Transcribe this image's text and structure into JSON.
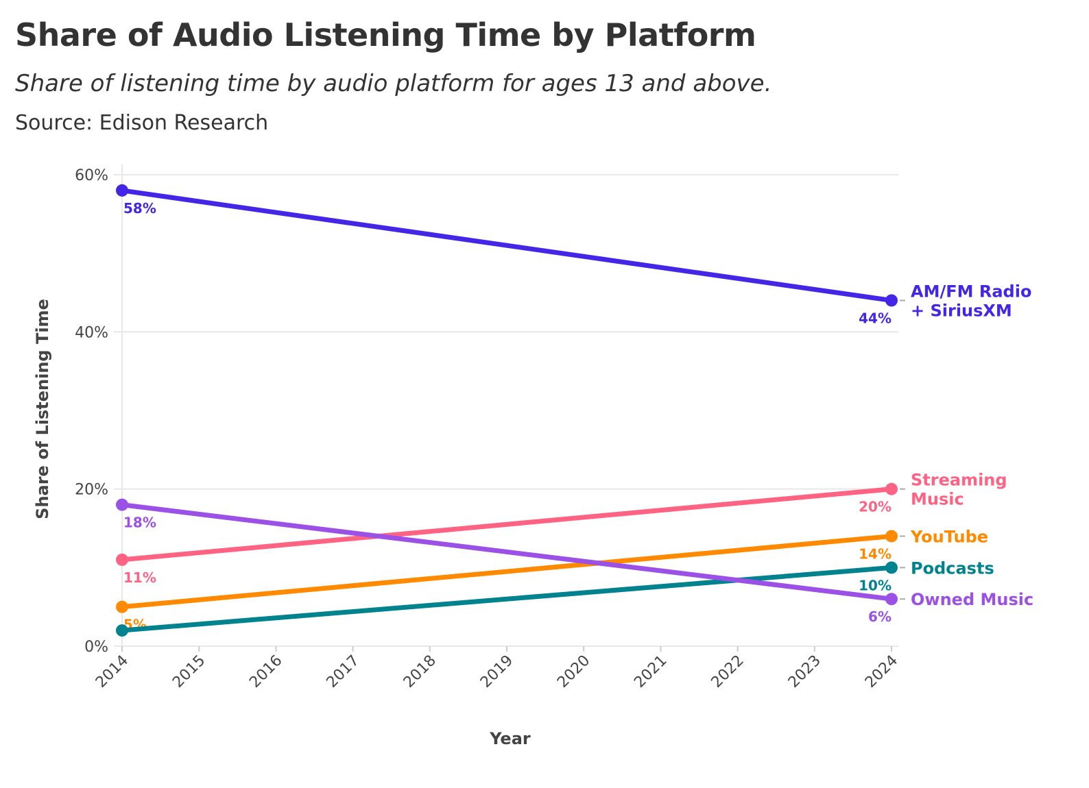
{
  "title": "Share of Audio Listening Time by Platform",
  "subtitle": "Share of listening time by audio platform for ages 13 and above.",
  "source": "Source: Edison Research",
  "chart_data": {
    "type": "line",
    "xlabel": "Year",
    "ylabel": "Share of Listening Time",
    "x": [
      2014,
      2024
    ],
    "xticks": [
      "2014",
      "2015",
      "2016",
      "2017",
      "2018",
      "2019",
      "2020",
      "2021",
      "2022",
      "2023",
      "2024"
    ],
    "ylim": [
      0,
      60
    ],
    "yticks": [
      "0%",
      "20%",
      "40%",
      "60%"
    ],
    "grid": true,
    "legend": "direct labels at right end of lines",
    "series": [
      {
        "name": "AM/FM Radio + SiriusXM",
        "name_lines": [
          "AM/FM Radio",
          "+ SiriusXM"
        ],
        "color": "#4426e6",
        "values": [
          58,
          44
        ],
        "labels": [
          "58%",
          "44%"
        ]
      },
      {
        "name": "Streaming Music",
        "name_lines": [
          "Streaming",
          "Music"
        ],
        "color": "#ff6384",
        "values": [
          11,
          20
        ],
        "labels": [
          "11%",
          "20%"
        ]
      },
      {
        "name": "YouTube",
        "name_lines": [
          "YouTube"
        ],
        "color": "#ff8a00",
        "values": [
          5,
          14
        ],
        "labels": [
          "5%",
          "14%"
        ]
      },
      {
        "name": "Podcasts",
        "name_lines": [
          "Podcasts"
        ],
        "color": "#00838f",
        "values": [
          2,
          10
        ],
        "labels": [
          null,
          "10%"
        ]
      },
      {
        "name": "Owned Music",
        "name_lines": [
          "Owned Music"
        ],
        "color": "#9b50e6",
        "values": [
          18,
          6
        ],
        "labels": [
          "18%",
          "6%"
        ]
      }
    ]
  }
}
